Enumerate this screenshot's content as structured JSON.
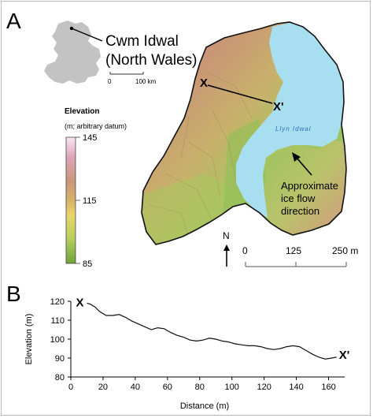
{
  "panels": {
    "a_label": "A",
    "b_label": "B"
  },
  "location": {
    "name_line1": "Cwm Idwal",
    "name_line2": "(North Wales)",
    "scale_start": "0",
    "scale_end": "100 km"
  },
  "legend": {
    "title": "Elevation",
    "subtitle": "(m; arbitrary datum)",
    "max_label": "145",
    "mid_label": "115",
    "min_label": "85",
    "colors": [
      "#fbe6f0",
      "#e0a6bb",
      "#c8977a",
      "#d9b26a",
      "#e8d66a",
      "#b9cf5e",
      "#6ea43c"
    ]
  },
  "map": {
    "lake_label": "Llyn Idwal",
    "profile_start": "X",
    "profile_end": "X'",
    "ice_label_line1": "Approximate",
    "ice_label_line2": "ice flow",
    "ice_label_line3": "direction",
    "north_label": "N",
    "scale_labels": [
      "0",
      "125",
      "250 m"
    ],
    "colors": {
      "water": "#a8dff0",
      "terrain_high": "#c89a74",
      "terrain_low": "#95c15c",
      "outline": "#111111"
    }
  },
  "chart_data": {
    "type": "line",
    "title": "",
    "xlabel": "Distance (m)",
    "ylabel": "Elevation (m)",
    "xlim": [
      0,
      170
    ],
    "ylim": [
      80,
      120
    ],
    "xticks": [
      0,
      20,
      40,
      60,
      80,
      100,
      120,
      140,
      160
    ],
    "yticks": [
      80,
      90,
      100,
      110,
      120
    ],
    "start_label": "X",
    "end_label": "X'",
    "series": [
      {
        "x": [
          10,
          12,
          15,
          18,
          22,
          26,
          30,
          34,
          38,
          42,
          46,
          50,
          54,
          58,
          62,
          66,
          70,
          74,
          78,
          82,
          86,
          90,
          94,
          98,
          102,
          106,
          110,
          114,
          118,
          122,
          126,
          130,
          134,
          138,
          142,
          146,
          150,
          154,
          158,
          162,
          165
        ],
        "y": [
          119,
          118.5,
          117,
          114.5,
          112.5,
          112.5,
          113,
          111.5,
          109.5,
          108,
          106.5,
          105,
          106,
          105.5,
          103.5,
          102,
          101,
          99.5,
          99,
          99.5,
          100.5,
          100,
          99,
          98.5,
          97.5,
          97,
          96.5,
          96.5,
          96,
          95,
          94.5,
          95,
          96,
          96.5,
          96,
          94,
          92,
          90.5,
          89.5,
          90,
          90.5
        ]
      }
    ]
  }
}
